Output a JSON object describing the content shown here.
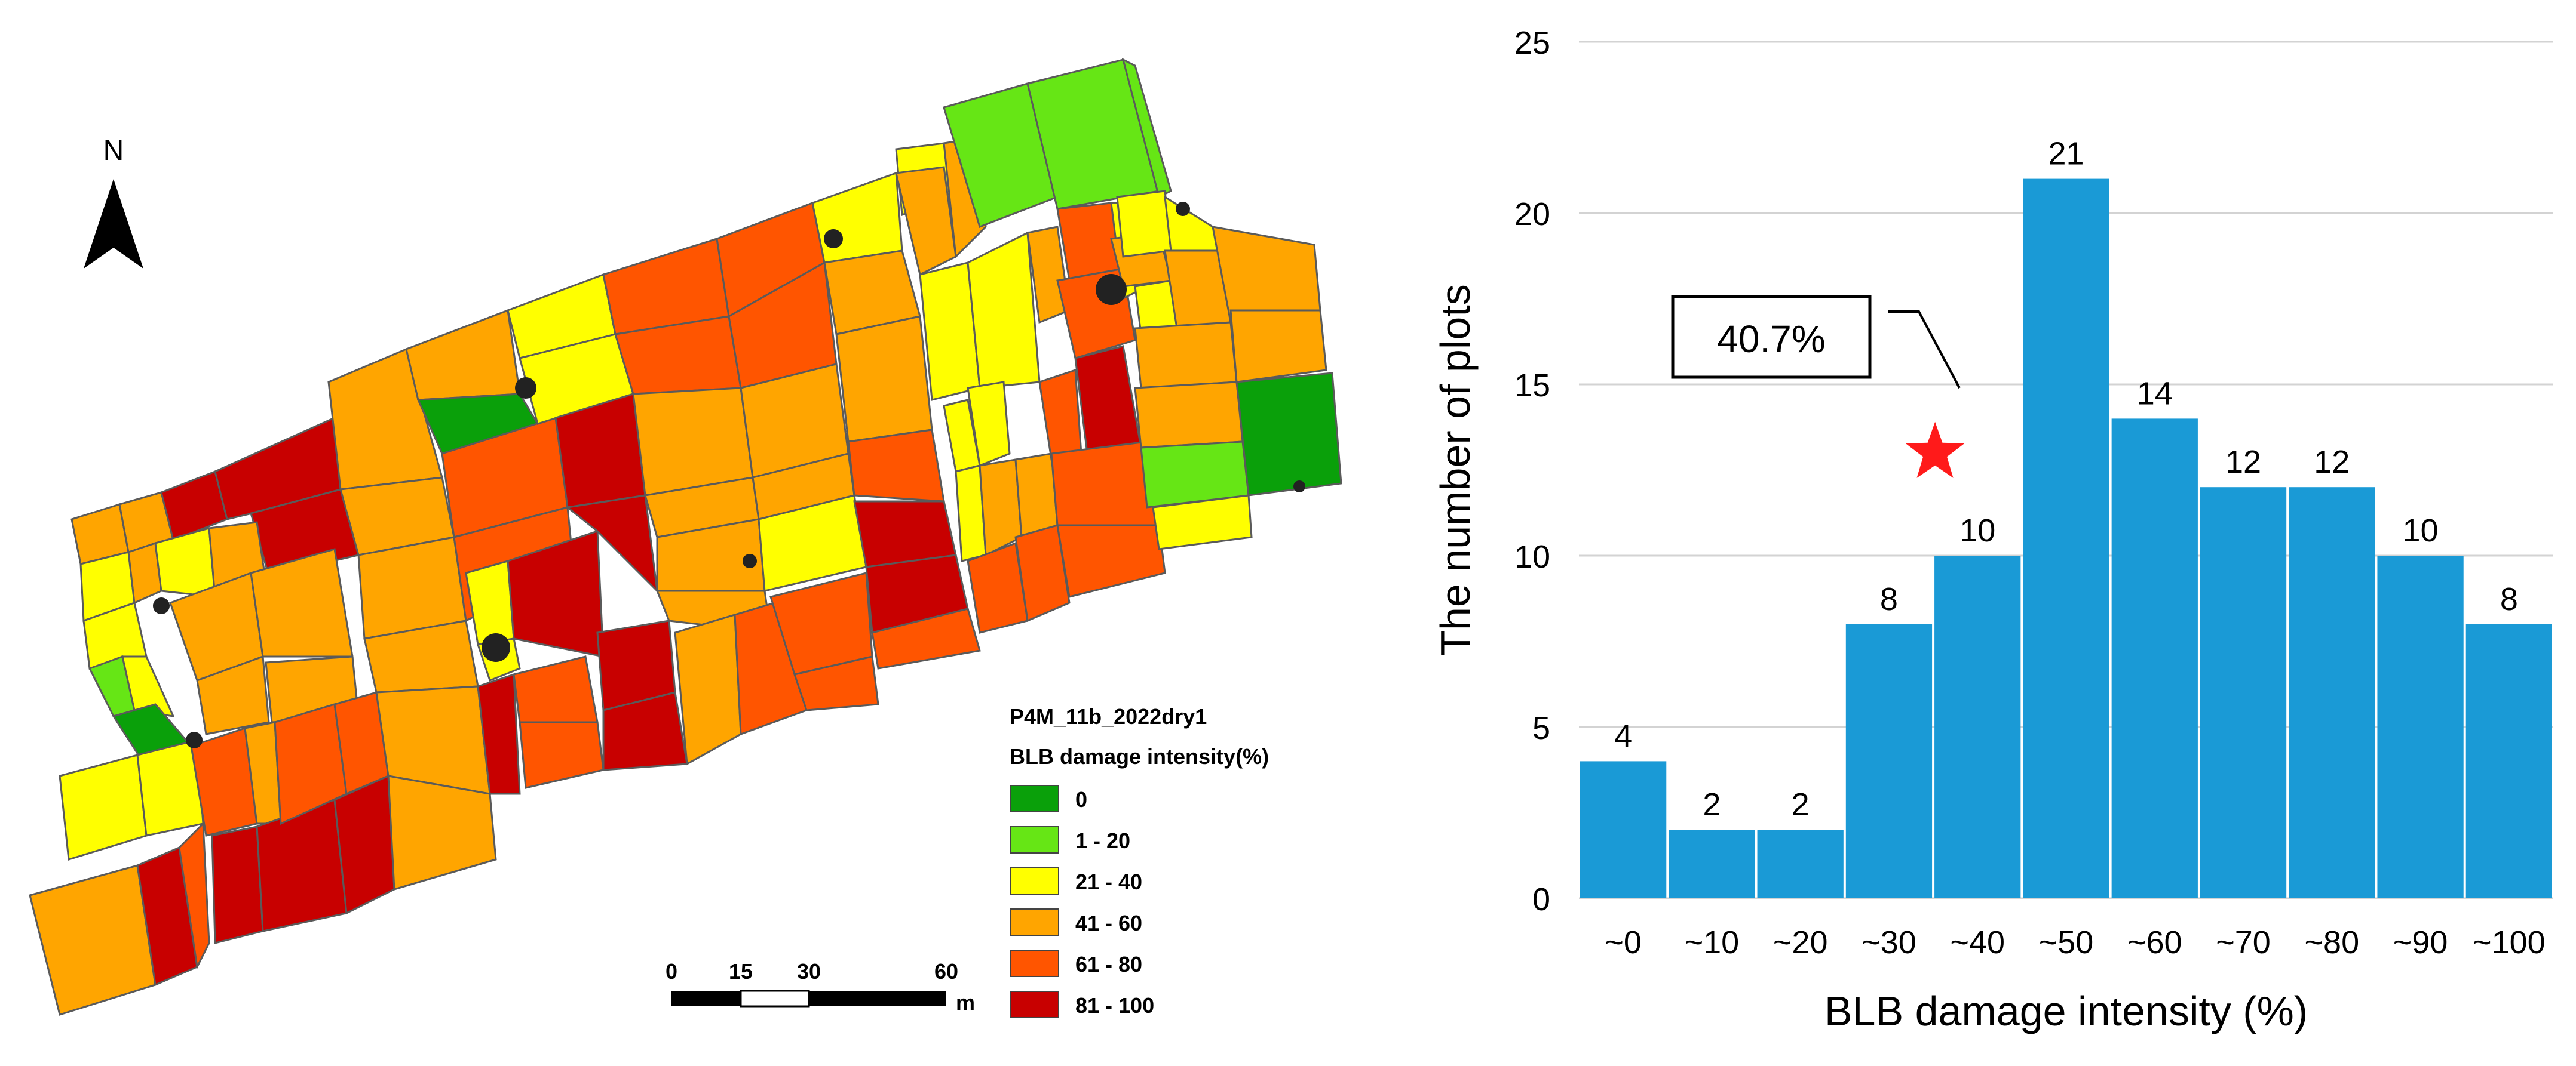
{
  "map": {
    "north_label": "N",
    "layer_name": "P4M_11b_2022dry1",
    "legend_title": "BLB damage intensity(%)",
    "legend": [
      {
        "label": "0",
        "color": "#0aa00a"
      },
      {
        "label": "1 - 20",
        "color": "#66e615"
      },
      {
        "label": "21 - 40",
        "color": "#ffff00"
      },
      {
        "label": "41 - 60",
        "color": "#ffa500"
      },
      {
        "label": "61 - 80",
        "color": "#ff5500"
      },
      {
        "label": "81 - 100",
        "color": "#c80000"
      }
    ],
    "scale_labels": [
      "0",
      "15",
      "30",
      "60"
    ],
    "scale_unit": "m"
  },
  "chart_data": {
    "type": "bar",
    "categories": [
      "~0",
      "~10",
      "~20",
      "~30",
      "~40",
      "~50",
      "~60",
      "~70",
      "~80",
      "~90",
      "~100"
    ],
    "values": [
      4,
      2,
      2,
      8,
      10,
      21,
      14,
      12,
      12,
      10,
      8
    ],
    "data_labels": [
      "4",
      "2",
      "2",
      "8",
      "10",
      "21",
      "14",
      "12",
      "12",
      "10",
      "8"
    ],
    "xlabel": "BLB damage intensity (%)",
    "ylabel": "The number of plots",
    "ylim": [
      0,
      25
    ],
    "yticks": [
      0,
      5,
      10,
      15,
      20,
      25
    ],
    "grid": true,
    "bar_color": "#1a9ad6",
    "annotation": {
      "text": "40.7%",
      "marker_x": 40.7,
      "marker_y": 13,
      "marker_color": "#ff1a1a"
    }
  }
}
